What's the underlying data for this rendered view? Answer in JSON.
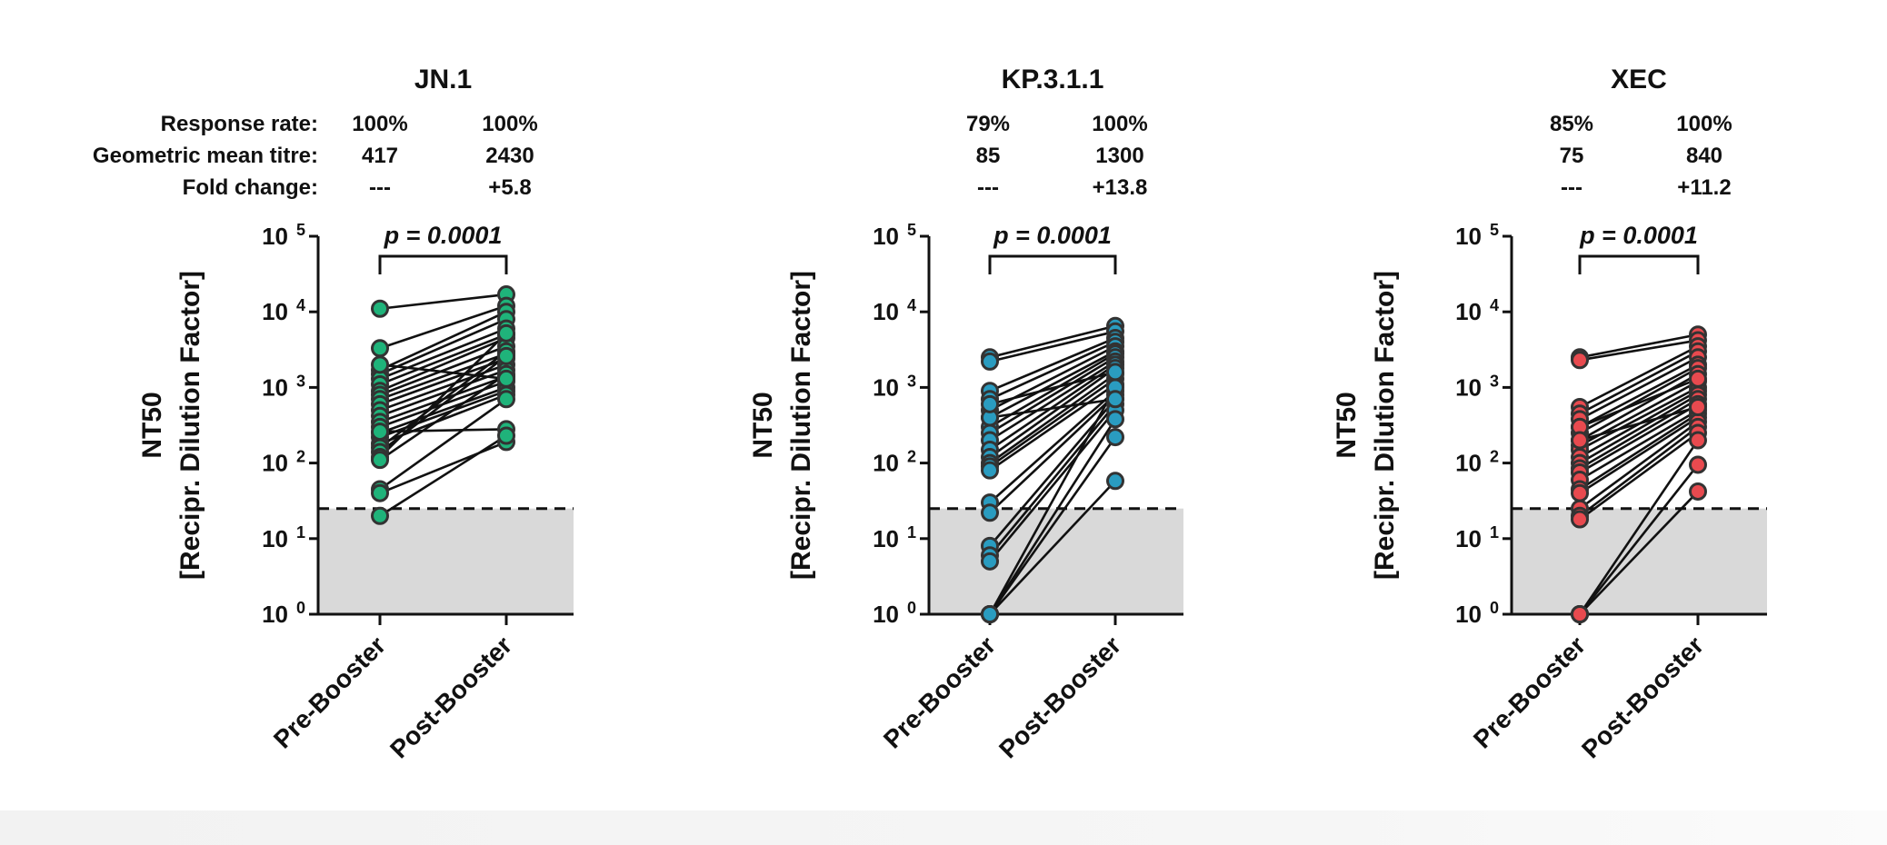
{
  "stats_labels": {
    "response_rate": "Response rate:",
    "gmt": "Geometric mean titre:",
    "fold_change": "Fold change:"
  },
  "y_axis": {
    "label_line1": "NT50",
    "label_line2": "[Recipr. Dilution Factor]",
    "scale": "log10",
    "ticks": [
      {
        "base": "10",
        "exp": "0",
        "value": 1
      },
      {
        "base": "10",
        "exp": "1",
        "value": 10
      },
      {
        "base": "10",
        "exp": "2",
        "value": 100
      },
      {
        "base": "10",
        "exp": "3",
        "value": 1000
      },
      {
        "base": "10",
        "exp": "4",
        "value": 10000
      },
      {
        "base": "10",
        "exp": "5",
        "value": 100000
      }
    ]
  },
  "x_categories": [
    "Pre-Booster",
    "Post-Booster"
  ],
  "threshold": 25,
  "colors": {
    "jn1": "#1fb37a",
    "kp": "#2a9cc0",
    "xec": "#e84a4f",
    "shade": "#d9d9d9",
    "line": "#111111"
  },
  "chart_data": [
    {
      "type": "line",
      "title": "JN.1",
      "color_key": "jn1",
      "categories": [
        "Pre-Booster",
        "Post-Booster"
      ],
      "ylim": [
        1,
        100000
      ],
      "stats": {
        "response_rate": [
          "100%",
          "100%"
        ],
        "gmt": [
          "417",
          "2430"
        ],
        "fold_change": [
          "---",
          "+5.8"
        ]
      },
      "p_value": "p = 0.0001",
      "pairs": [
        [
          11000,
          17000
        ],
        [
          3300,
          12000
        ],
        [
          1700,
          10000
        ],
        [
          1500,
          8000
        ],
        [
          1300,
          6000
        ],
        [
          1100,
          5000
        ],
        [
          900,
          4500
        ],
        [
          800,
          3500
        ],
        [
          700,
          2800
        ],
        [
          600,
          2400
        ],
        [
          500,
          2000
        ],
        [
          420,
          1700
        ],
        [
          350,
          1400
        ],
        [
          300,
          1200
        ],
        [
          250,
          1000
        ],
        [
          220,
          900
        ],
        [
          180,
          800
        ],
        [
          160,
          3000
        ],
        [
          140,
          2600
        ],
        [
          120,
          5200
        ],
        [
          110,
          1500
        ],
        [
          260,
          280
        ],
        [
          45,
          700
        ],
        [
          40,
          190
        ],
        [
          20,
          230
        ],
        [
          2000,
          1300
        ]
      ]
    },
    {
      "type": "line",
      "title": "KP.3.1.1",
      "color_key": "kp",
      "categories": [
        "Pre-Booster",
        "Post-Booster"
      ],
      "ylim": [
        1,
        100000
      ],
      "stats": {
        "response_rate": [
          "79%",
          "100%"
        ],
        "gmt": [
          "85",
          "1300"
        ],
        "fold_change": [
          "---",
          "+13.8"
        ]
      },
      "p_value": "p = 0.0001",
      "pairs": [
        [
          2500,
          6500
        ],
        [
          2200,
          5500
        ],
        [
          900,
          4500
        ],
        [
          700,
          4000
        ],
        [
          500,
          3500
        ],
        [
          400,
          3000
        ],
        [
          300,
          2800
        ],
        [
          250,
          2500
        ],
        [
          200,
          2200
        ],
        [
          150,
          2000
        ],
        [
          120,
          1800
        ],
        [
          100,
          1500
        ],
        [
          90,
          1300
        ],
        [
          80,
          1100
        ],
        [
          30,
          900
        ],
        [
          22,
          800
        ],
        [
          8,
          700
        ],
        [
          6,
          600
        ],
        [
          5,
          500
        ],
        [
          1,
          380
        ],
        [
          1,
          220
        ],
        [
          1,
          58
        ],
        [
          1,
          1000
        ],
        [
          400,
          700
        ],
        [
          600,
          1600
        ]
      ]
    },
    {
      "type": "line",
      "title": "XEC",
      "color_key": "xec",
      "categories": [
        "Pre-Booster",
        "Post-Booster"
      ],
      "ylim": [
        1,
        100000
      ],
      "stats": {
        "response_rate": [
          "85%",
          "100%"
        ],
        "gmt": [
          "75",
          "840"
        ],
        "fold_change": [
          "---",
          "+11.2"
        ]
      },
      "p_value": "p = 0.0001",
      "pairs": [
        [
          2500,
          5000
        ],
        [
          2300,
          4200
        ],
        [
          550,
          3500
        ],
        [
          450,
          3000
        ],
        [
          380,
          2500
        ],
        [
          300,
          2000
        ],
        [
          250,
          1800
        ],
        [
          200,
          1500
        ],
        [
          170,
          1200
        ],
        [
          150,
          1000
        ],
        [
          120,
          900
        ],
        [
          100,
          800
        ],
        [
          85,
          700
        ],
        [
          75,
          600
        ],
        [
          60,
          500
        ],
        [
          45,
          450
        ],
        [
          40,
          400
        ],
        [
          25,
          350
        ],
        [
          20,
          300
        ],
        [
          18,
          250
        ],
        [
          1,
          200
        ],
        [
          1,
          95
        ],
        [
          1,
          42
        ],
        [
          300,
          1300
        ],
        [
          200,
          550
        ]
      ]
    }
  ]
}
